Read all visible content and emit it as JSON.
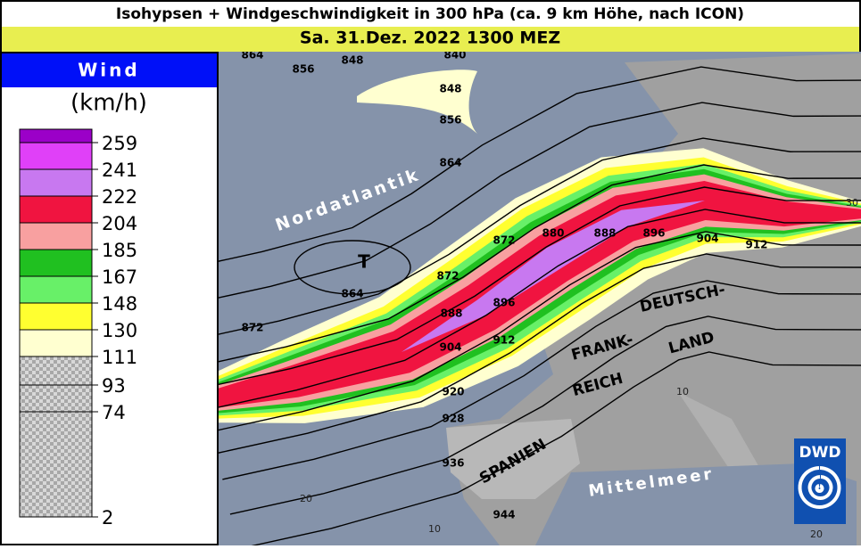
{
  "header": {
    "title": "Isohypsen + Windgeschwindigkeit in 300 hPa (ca. 9 km Höhe, nach ICON)",
    "subtitle": "Sa. 31.Dez. 2022 1300 MEZ"
  },
  "legend": {
    "title": "Wind",
    "unit": "(km/h)",
    "levels": [
      {
        "label": 259,
        "color": "#9b00c8"
      },
      {
        "label": 241,
        "color": "#e040f8"
      },
      {
        "label": 222,
        "color": "#c878f0"
      },
      {
        "label": 204,
        "color": "#f01440"
      },
      {
        "label": 185,
        "color": "#f8a0a0"
      },
      {
        "label": 167,
        "color": "#20c020"
      },
      {
        "label": 148,
        "color": "#68f068"
      },
      {
        "label": 130,
        "color": "#ffff30"
      },
      {
        "label": 111,
        "color": "#ffffd0"
      },
      {
        "label": 93
      },
      {
        "label": 74
      },
      {
        "label": 2
      }
    ]
  },
  "map": {
    "labels": [
      "Nordatlantik",
      "T",
      "DEUTSCH-",
      "LAND",
      "FRANK-",
      "REICH",
      "SPANIEN",
      "Mittelmeer"
    ],
    "contour_labels": [
      864,
      856,
      848,
      840,
      848,
      856,
      864,
      864,
      872,
      872,
      872,
      880,
      888,
      888,
      896,
      896,
      904,
      904,
      912,
      912,
      920,
      928,
      936,
      944
    ],
    "grid_labels": [
      "10",
      "20",
      "10",
      "20",
      "30"
    ],
    "logo": "DWD"
  }
}
